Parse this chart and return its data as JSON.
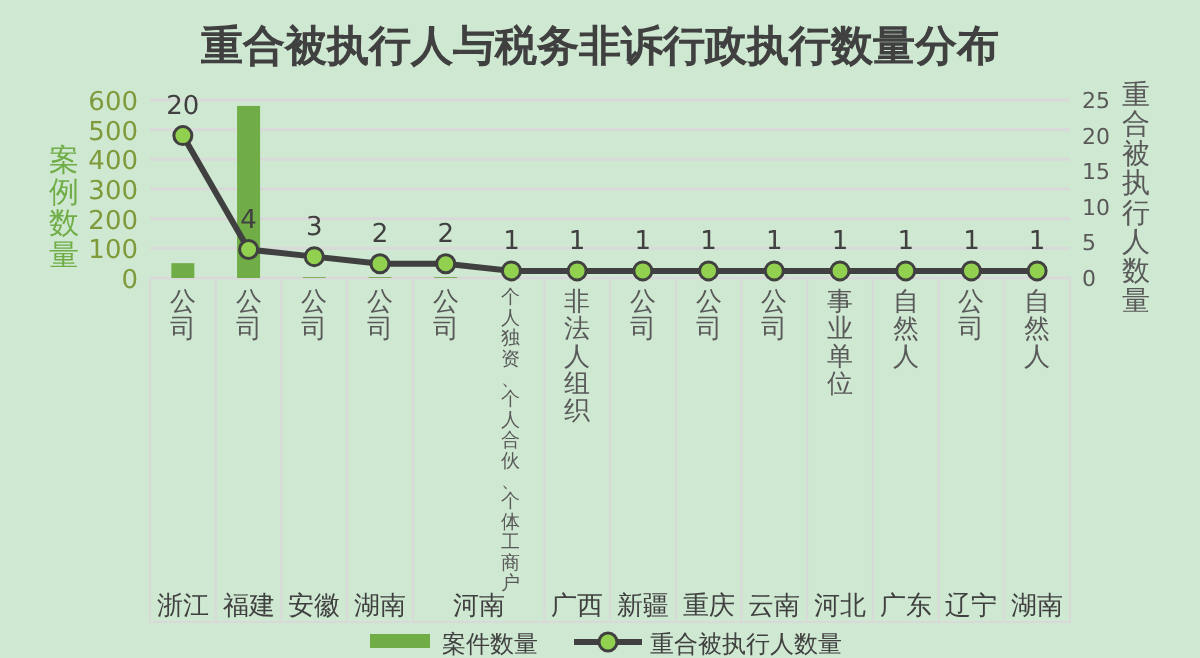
{
  "chart_data": {
    "type": "bar",
    "title": "重合被执行人与税务非诉行政执行数量分布",
    "categories": [
      "公司",
      "公司",
      "公司",
      "公司",
      "公司",
      "个人独资、个人合伙、个体工商户",
      "非法人组织",
      "公司",
      "公司",
      "公司",
      "事业单位",
      "自然人",
      "公司",
      "自然人"
    ],
    "annotations": [
      "浙江",
      "福建",
      "安徽",
      "湖南",
      "河南",
      "广西",
      "新疆",
      "重庆",
      "云南",
      "河北",
      "广东",
      "辽宁",
      "湖南"
    ],
    "series": [
      {
        "name": "案件数量",
        "color": "#70ad47",
        "values": [
          50,
          580,
          3,
          3,
          3,
          null,
          null,
          null,
          null,
          null,
          null,
          null,
          null,
          null
        ]
      },
      {
        "name": "重合被执行人数量",
        "type": "line",
        "axis": "y2",
        "color": "#404040",
        "marker": "circle",
        "data_labels": true,
        "values": [
          20,
          4,
          3,
          2,
          2,
          1,
          1,
          1,
          1,
          1,
          1,
          1,
          1,
          1
        ]
      }
    ],
    "ylabel": "案例数量",
    "y2label": "重合被执行人数量",
    "ylim": [
      0,
      600
    ],
    "yticks": [
      0,
      100,
      200,
      300,
      400,
      500,
      600
    ],
    "y2lim": [
      0,
      25
    ],
    "y2ticks": [
      0,
      5,
      10,
      15,
      20,
      25
    ],
    "grid": "y",
    "legend": "bottom"
  }
}
